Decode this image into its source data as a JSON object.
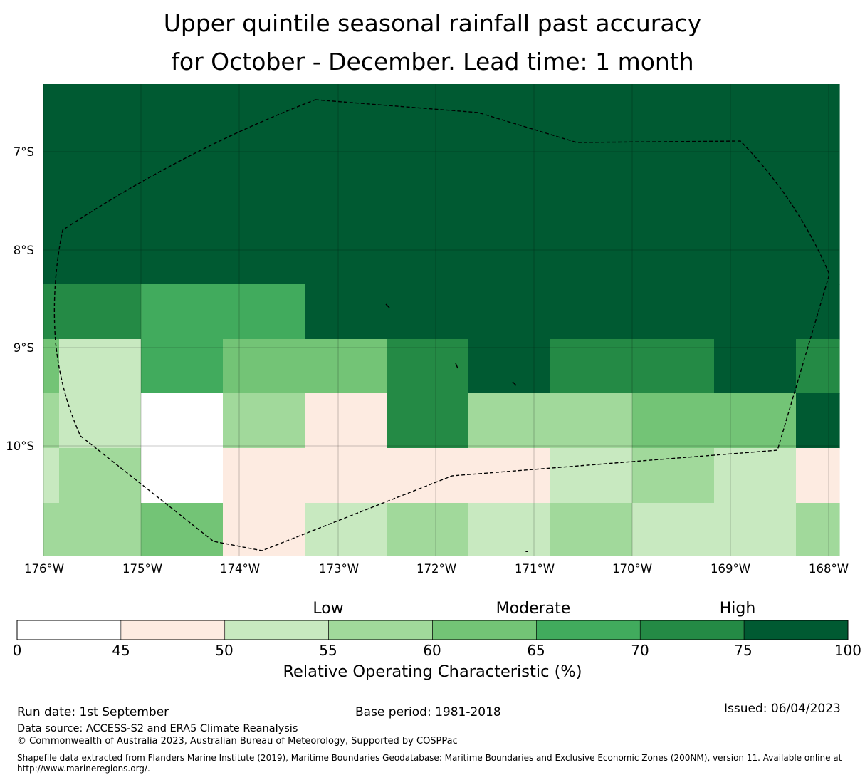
{
  "title_line1": "Upper quintile seasonal rainfall past accuracy",
  "title_line2": "for October - December. Lead time: 1 month",
  "map": {
    "lat_labels": [
      "7°S",
      "8°S",
      "9°S",
      "10°S"
    ],
    "lon_labels": [
      "176°W",
      "175°W",
      "174°W",
      "173°W",
      "172°W",
      "171°W",
      "170°W",
      "169°W",
      "168°W"
    ],
    "eez_boundary_style": "dashed",
    "colors": {
      "0": "#ffffff",
      "1": "#fdebe1",
      "2": "#c8e9c0",
      "3": "#a1d99b",
      "4": "#73c476",
      "5": "#41ab5d",
      "6": "#248a45",
      "7": "#005a32"
    },
    "roc_bins_legend": "0:<45, 1:45-50, 2:50-55, 3:55-60, 4:60-65, 5:65-70, 6:70-75, 7:75-100"
  },
  "colorbar": {
    "categories": [
      "Low",
      "Moderate",
      "High"
    ],
    "ticks": [
      "0",
      "45",
      "50",
      "55",
      "60",
      "65",
      "70",
      "75",
      "100"
    ],
    "colors": [
      "#ffffff",
      "#fdebe1",
      "#c8e9c0",
      "#a1d99b",
      "#73c476",
      "#41ab5d",
      "#248a45",
      "#005a32"
    ],
    "title": "Relative Operating Characteristic (%)"
  },
  "footer": {
    "run_date": "Run date: 1st September",
    "base_period": "Base period: 1981-2018",
    "issued": "Issued: 06/04/2023",
    "data_source": "Data source: ACCESS-S2 and ERA5 Climate Reanalysis",
    "copyright": "© Commonwealth of Australia 2023, Australian Bureau of Meteorology, Supported by COSPPac",
    "shapefile_line1": "Shapefile data extracted from Flanders Marine Institute (2019), Maritime Boundaries Geodatabase: Maritime Boundaries and Exclusive Economic Zones (200NM), version 11. Available online at",
    "shapefile_line2": "http://www.marineregions.org/."
  }
}
